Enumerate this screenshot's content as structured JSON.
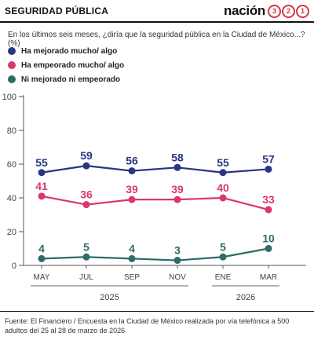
{
  "header": {
    "section_title": "SEGURIDAD PÚBLICA",
    "brand_name": "nación",
    "brand_digits": [
      "3",
      "2",
      "1"
    ],
    "brand_color": "#d6364a"
  },
  "question": "En los últimos seis meses, ¿diría que la seguridad pública en la Ciudad de México...? (%)",
  "source": "Fuente: El Financiero /  Encuesta en la Ciudad de México realizada por vía telefónica a 500 adultos del 25 al 28 de marzo de 2026",
  "chart_data": {
    "type": "line",
    "title": "",
    "xlabel": "",
    "ylabel": "",
    "categories": [
      "MAY",
      "JUL",
      "SEP",
      "NOV",
      "ENE",
      "MAR"
    ],
    "year_groups": [
      {
        "label": "2025",
        "from": 0,
        "to": 3
      },
      {
        "label": "2026",
        "from": 4,
        "to": 5
      }
    ],
    "ylim": [
      0,
      100
    ],
    "yticks": [
      0,
      20,
      40,
      60,
      80,
      100
    ],
    "grid": false,
    "legend_position": "top-left",
    "series": [
      {
        "name": "Ha mejorado mucho/ algo",
        "color": "#2b3583",
        "values": [
          55,
          59,
          56,
          58,
          55,
          57
        ]
      },
      {
        "name": "Ha empeorado mucho/ algo",
        "color": "#d9386b",
        "values": [
          41,
          36,
          39,
          39,
          40,
          33
        ]
      },
      {
        "name": "Ni mejorado ni empeorado",
        "color": "#2e6b68",
        "values": [
          4,
          5,
          4,
          3,
          5,
          10
        ]
      }
    ]
  }
}
